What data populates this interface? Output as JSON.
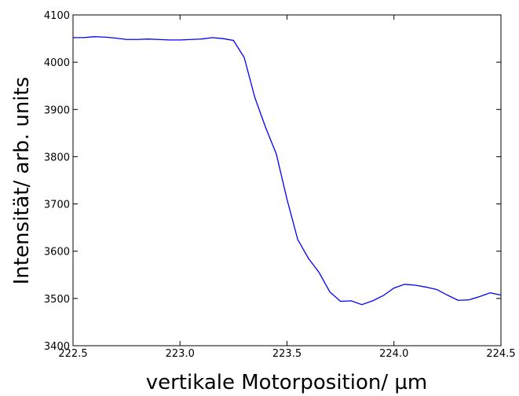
{
  "chart_data": {
    "type": "line",
    "xlabel": "vertikale Motorposition/ µm",
    "ylabel": "Intensität/ arb. units",
    "x": [
      222.5,
      222.55,
      222.6,
      222.65,
      222.7,
      222.75,
      222.8,
      222.85,
      222.9,
      222.95,
      223.0,
      223.05,
      223.1,
      223.15,
      223.2,
      223.25,
      223.3,
      223.35,
      223.4,
      223.45,
      223.5,
      223.55,
      223.6,
      223.65,
      223.7,
      223.75,
      223.8,
      223.85,
      223.9,
      223.95,
      224.0,
      224.05,
      224.1,
      224.15,
      224.2,
      224.25,
      224.3,
      224.35,
      224.4,
      224.45,
      224.5
    ],
    "series": [
      {
        "color": "#0000ff",
        "values": [
          4052,
          4052,
          4054,
          4053,
          4051,
          4048,
          4048,
          4049,
          4048,
          4047,
          4047,
          4048,
          4049,
          4052,
          4050,
          4046,
          4010,
          3925,
          3862,
          3806,
          3710,
          3625,
          3585,
          3555,
          3514,
          3494,
          3495,
          3487,
          3495,
          3506,
          3522,
          3530,
          3528,
          3524,
          3519,
          3507,
          3496,
          3497,
          3504,
          3512,
          3507
        ]
      }
    ],
    "xlim": [
      222.5,
      224.5
    ],
    "xticks": [
      222.5,
      {
        "value": 223,
        "label": "223.0"
      },
      223.5,
      {
        "value": 224,
        "label": "224.0"
      },
      224.5
    ],
    "ylim": [
      3400,
      4100
    ],
    "yticks": [
      3400,
      3500,
      3600,
      3700,
      3800,
      3900,
      4000,
      4100
    ],
    "grid": false
  }
}
